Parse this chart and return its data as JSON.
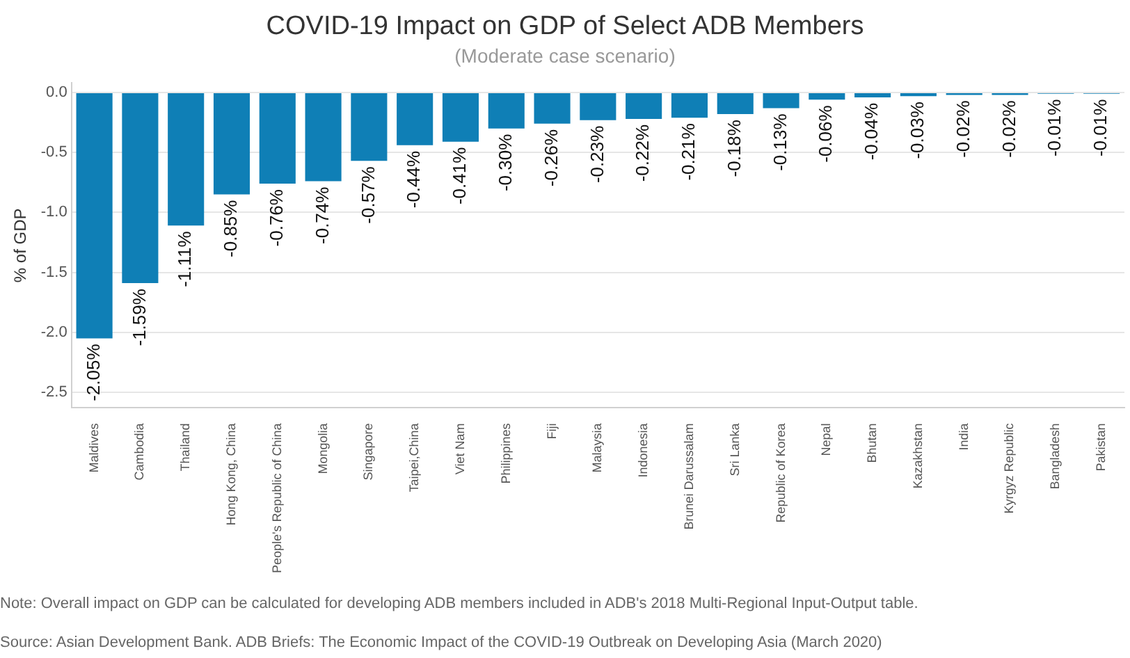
{
  "chart_data": {
    "type": "bar",
    "title": "COVID-19 Impact on GDP of Select ADB Members",
    "subtitle": "(Moderate case scenario)",
    "ylabel": "% of GDP",
    "categories": [
      "Maldives",
      "Cambodia",
      "Thailand",
      "Hong Kong, China",
      "People's Republic of China",
      "Mongolia",
      "Singapore",
      "Taipei,China",
      "Viet Nam",
      "Philippines",
      "Fiji",
      "Malaysia",
      "Indonesia",
      "Brunei Darussalam",
      "Sri Lanka",
      "Republic of Korea",
      "Nepal",
      "Bhutan",
      "Kazakhstan",
      "India",
      "Kyrgyz Republic",
      "Bangladesh",
      "Pakistan"
    ],
    "values": [
      -2.05,
      -1.59,
      -1.11,
      -0.85,
      -0.76,
      -0.74,
      -0.57,
      -0.44,
      -0.41,
      -0.3,
      -0.26,
      -0.23,
      -0.22,
      -0.21,
      -0.18,
      -0.13,
      -0.06,
      -0.04,
      -0.03,
      -0.02,
      -0.02,
      -0.01,
      -0.01
    ],
    "value_labels": [
      "-2.05%",
      "-1.59%",
      "-1.11%",
      "-0.85%",
      "-0.76%",
      "-0.74%",
      "-0.57%",
      "-0.44%",
      "-0.41%",
      "-0.30%",
      "-0.26%",
      "-0.23%",
      "-0.22%",
      "-0.21%",
      "-0.18%",
      "-0.13%",
      "-0.06%",
      "-0.04%",
      "-0.03%",
      "-0.02%",
      "-0.02%",
      "-0.01%",
      "-0.01%"
    ],
    "color": "#0f7fb6",
    "ylim": [
      -2.63,
      0.08
    ],
    "yticks": [
      {
        "value": 0,
        "label": "0.0"
      },
      {
        "value": -0.5,
        "label": "-0.5"
      },
      {
        "value": -1,
        "label": "-1.0"
      },
      {
        "value": -1.5,
        "label": "-1.5"
      },
      {
        "value": -2,
        "label": "-2.0"
      },
      {
        "value": -2.5,
        "label": "-2.5"
      }
    ],
    "grid": "y",
    "legend": false,
    "annotations": [
      "Note: Overall impact on GDP can be calculated for developing ADB members included in ADB's 2018 Multi-Regional Input-Output table.",
      "Source: Asian Development Bank. ADB Briefs: The Economic Impact of the COVID-19 Outbreak on Developing Asia (March 2020)"
    ]
  }
}
